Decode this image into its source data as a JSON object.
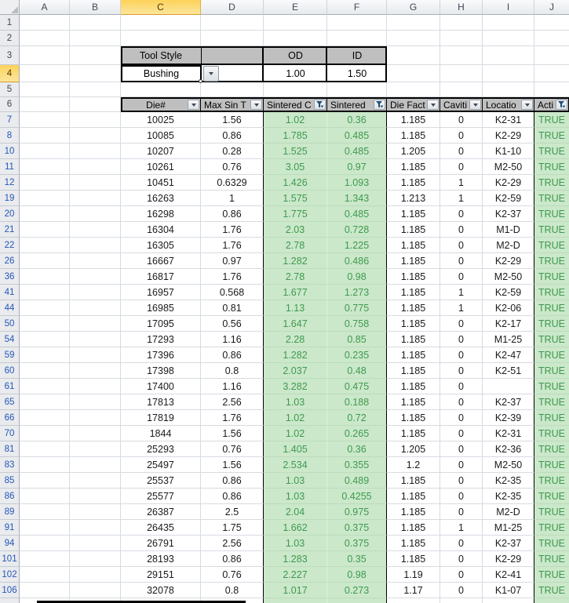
{
  "app": {
    "name": "spreadsheet-die-inventory"
  },
  "grid": {
    "column_letters": [
      "A",
      "B",
      "C",
      "D",
      "E",
      "F",
      "G",
      "H",
      "I",
      "J"
    ],
    "selected_column": "C",
    "selected_row": 4,
    "upper_row_numbers": [
      "1",
      "2",
      "3",
      "4",
      "5"
    ]
  },
  "tool_style": {
    "label": "Tool Style",
    "value": "Bushing",
    "od_label": "OD",
    "od_value": "1.00",
    "id_label": "ID",
    "id_value": "1.50"
  },
  "table": {
    "headers": [
      {
        "label": "Die#",
        "filter": "dropdown"
      },
      {
        "label": "Max Sin T",
        "filter": "dropdown"
      },
      {
        "label": "Sintered C",
        "filter": "funnel"
      },
      {
        "label": "Sintered",
        "filter": "funnel"
      },
      {
        "label": "Die Fact",
        "filter": "dropdown"
      },
      {
        "label": "Caviti",
        "filter": "dropdown"
      },
      {
        "label": "Locatio",
        "filter": "dropdown"
      },
      {
        "label": "Acti",
        "filter": "funnel"
      }
    ],
    "rows": [
      {
        "n": "7",
        "cells": [
          "10025",
          "1.56",
          "1.02",
          "0.36",
          "1.185",
          "0",
          "K2-31",
          "TRUE"
        ]
      },
      {
        "n": "8",
        "cells": [
          "10085",
          "0.86",
          "1.785",
          "0.485",
          "1.185",
          "0",
          "K2-29",
          "TRUE"
        ]
      },
      {
        "n": "10",
        "cells": [
          "10207",
          "0.28",
          "1.525",
          "0.485",
          "1.205",
          "0",
          "K1-10",
          "TRUE"
        ]
      },
      {
        "n": "11",
        "cells": [
          "10261",
          "0.76",
          "3.05",
          "0.97",
          "1.185",
          "0",
          "M2-50",
          "TRUE"
        ]
      },
      {
        "n": "12",
        "cells": [
          "10451",
          "0.6329",
          "1.426",
          "1.093",
          "1.185",
          "1",
          "K2-29",
          "TRUE"
        ]
      },
      {
        "n": "19",
        "cells": [
          "16263",
          "1",
          "1.575",
          "1.343",
          "1.213",
          "1",
          "K2-59",
          "TRUE"
        ]
      },
      {
        "n": "20",
        "cells": [
          "16298",
          "0.86",
          "1.775",
          "0.485",
          "1.185",
          "0",
          "K2-37",
          "TRUE"
        ]
      },
      {
        "n": "21",
        "cells": [
          "16304",
          "1.76",
          "2.03",
          "0.728",
          "1.185",
          "0",
          "M1-D",
          "TRUE"
        ]
      },
      {
        "n": "22",
        "cells": [
          "16305",
          "1.76",
          "2.78",
          "1.225",
          "1.185",
          "0",
          "M2-D",
          "TRUE"
        ]
      },
      {
        "n": "26",
        "cells": [
          "16667",
          "0.97",
          "1.282",
          "0.486",
          "1.185",
          "0",
          "K2-29",
          "TRUE"
        ]
      },
      {
        "n": "36",
        "cells": [
          "16817",
          "1.76",
          "2.78",
          "0.98",
          "1.185",
          "0",
          "M2-50",
          "TRUE"
        ]
      },
      {
        "n": "41",
        "cells": [
          "16957",
          "0.568",
          "1.677",
          "1.273",
          "1.185",
          "1",
          "K2-59",
          "TRUE"
        ]
      },
      {
        "n": "44",
        "cells": [
          "16985",
          "0.81",
          "1.13",
          "0.775",
          "1.185",
          "1",
          "K2-06",
          "TRUE"
        ]
      },
      {
        "n": "50",
        "cells": [
          "17095",
          "0.56",
          "1.647",
          "0.758",
          "1.185",
          "0",
          "K2-17",
          "TRUE"
        ]
      },
      {
        "n": "54",
        "cells": [
          "17293",
          "1.16",
          "2.28",
          "0.85",
          "1.185",
          "0",
          "M1-25",
          "TRUE"
        ]
      },
      {
        "n": "59",
        "cells": [
          "17396",
          "0.86",
          "1.282",
          "0.235",
          "1.185",
          "0",
          "K2-47",
          "TRUE"
        ]
      },
      {
        "n": "60",
        "cells": [
          "17398",
          "0.8",
          "2.037",
          "0.48",
          "1.185",
          "0",
          "K2-51",
          "TRUE"
        ]
      },
      {
        "n": "61",
        "cells": [
          "17400",
          "1.16",
          "3.282",
          "0.475",
          "1.185",
          "0",
          "",
          "TRUE"
        ]
      },
      {
        "n": "65",
        "cells": [
          "17813",
          "2.56",
          "1.03",
          "0.188",
          "1.185",
          "0",
          "K2-37",
          "TRUE"
        ]
      },
      {
        "n": "66",
        "cells": [
          "17819",
          "1.76",
          "1.02",
          "0.72",
          "1.185",
          "0",
          "K2-39",
          "TRUE"
        ]
      },
      {
        "n": "70",
        "cells": [
          "1844",
          "1.56",
          "1.02",
          "0.265",
          "1.185",
          "0",
          "K2-31",
          "TRUE"
        ]
      },
      {
        "n": "81",
        "cells": [
          "25293",
          "0.76",
          "1.405",
          "0.36",
          "1.205",
          "0",
          "K2-36",
          "TRUE"
        ]
      },
      {
        "n": "83",
        "cells": [
          "25497",
          "1.56",
          "2.534",
          "0.355",
          "1.2",
          "0",
          "M2-50",
          "TRUE"
        ]
      },
      {
        "n": "85",
        "cells": [
          "25537",
          "0.86",
          "1.03",
          "0.489",
          "1.185",
          "0",
          "K2-35",
          "TRUE"
        ]
      },
      {
        "n": "86",
        "cells": [
          "25577",
          "0.86",
          "1.03",
          "0.4255",
          "1.185",
          "0",
          "K2-35",
          "TRUE"
        ]
      },
      {
        "n": "89",
        "cells": [
          "26387",
          "2.5",
          "2.04",
          "0.975",
          "1.185",
          "0",
          "M2-D",
          "TRUE"
        ]
      },
      {
        "n": "91",
        "cells": [
          "26435",
          "1.75",
          "1.662",
          "0.375",
          "1.185",
          "1",
          "M1-25",
          "TRUE"
        ]
      },
      {
        "n": "94",
        "cells": [
          "26791",
          "2.56",
          "1.03",
          "0.375",
          "1.185",
          "0",
          "K2-37",
          "TRUE"
        ]
      },
      {
        "n": "101",
        "cells": [
          "28193",
          "0.86",
          "1.283",
          "0.35",
          "1.185",
          "0",
          "K2-29",
          "TRUE"
        ]
      },
      {
        "n": "102",
        "cells": [
          "29151",
          "0.76",
          "2.227",
          "0.98",
          "1.19",
          "0",
          "K2-41",
          "TRUE"
        ]
      },
      {
        "n": "106",
        "cells": [
          "32078",
          "0.8",
          "1.017",
          "0.273",
          "1.17",
          "0",
          "K1-07",
          "TRUE"
        ]
      }
    ]
  },
  "colors": {
    "gridline": "#D6DBE1",
    "table_header_bg": "#BFBFBF",
    "green_bg": "#CBE8CA",
    "green_text": "#3F9950",
    "filtered_row_number": "#2456B8",
    "selected_header_top": "#FDD25A",
    "selected_header_bottom": "#FCE59B"
  }
}
